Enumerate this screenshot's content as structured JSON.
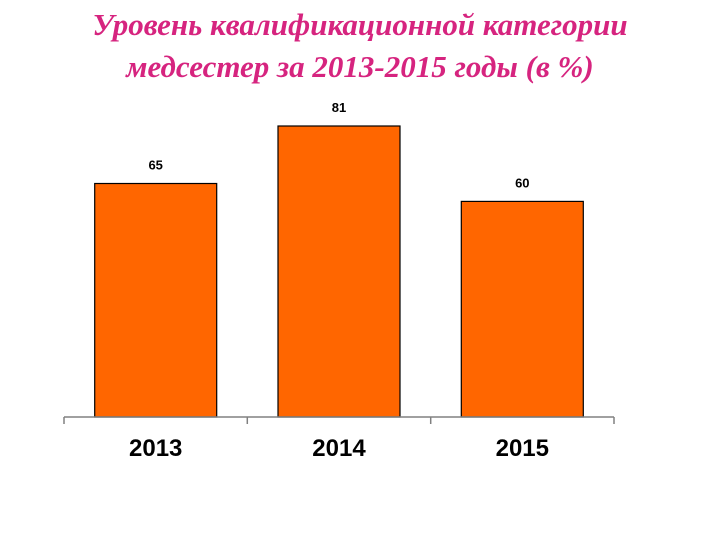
{
  "slide": {
    "title_line1": "Уровень  квалификационной категории",
    "title_line2": "медсестер за 2013-2015 годы (в %)"
  },
  "colors": {
    "title": "#d6247f",
    "bar_fill": "#ff6600",
    "bar_stroke": "#000000"
  },
  "chart_data": {
    "type": "bar",
    "title": "Уровень  квалификационной категории медсестер за 2013-2015 годы (в %)",
    "categories": [
      "2013",
      "2014",
      "2015"
    ],
    "values": [
      65,
      81,
      60
    ],
    "data_labels": [
      "65",
      "81",
      "60"
    ],
    "xlabel": "",
    "ylabel": "",
    "ylim": [
      0,
      81
    ],
    "grid": false,
    "legend": "none"
  }
}
